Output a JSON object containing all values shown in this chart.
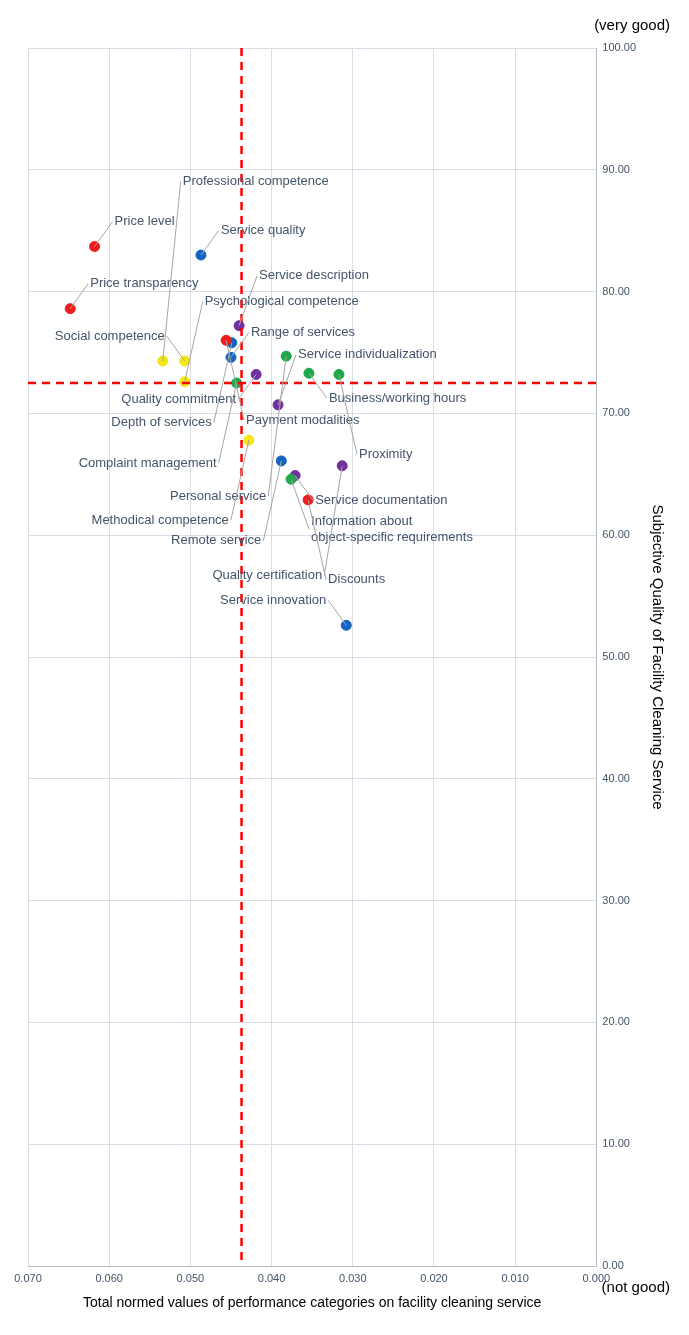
{
  "chart_data": {
    "type": "scatter",
    "xlabel": "Total normed values of performance categories on facility cleaning service",
    "ylabel": "Subjective Quality of Facility Cleaning Service",
    "x": [
      0.0648,
      0.0618,
      0.0487,
      0.0534,
      0.0507,
      0.0507,
      0.044,
      0.0449,
      0.0456,
      0.045,
      0.0443,
      0.0419,
      0.0382,
      0.0354,
      0.0317,
      0.0428,
      0.0392,
      0.0388,
      0.0371,
      0.0376,
      0.0313,
      0.0355,
      0.0308
    ],
    "values": [
      78.6,
      83.7,
      83.0,
      74.3,
      74.3,
      72.6,
      77.2,
      75.8,
      76.0,
      74.6,
      72.5,
      73.2,
      74.7,
      73.3,
      73.2,
      67.8,
      70.7,
      66.1,
      64.9,
      64.6,
      65.7,
      62.9,
      52.6
    ],
    "colors": [
      "#ee1c1c",
      "#ee1c1c",
      "#1565c0",
      "#f5e614",
      "#f5e614",
      "#f5e614",
      "#7030a0",
      "#1565c0",
      "#ee1c1c",
      "#1565c0",
      "#1fa84a",
      "#7030a0",
      "#1fa84a",
      "#1fa84a",
      "#1fa84a",
      "#f5e614",
      "#7030a0",
      "#1565c0",
      "#7030a0",
      "#1fa84a",
      "#7030a0",
      "#ee1c1c",
      "#1565c0"
    ],
    "marker": "circle",
    "ylim": [
      0,
      100
    ],
    "yticks": [
      {
        "value": 0,
        "label": "0.00"
      },
      {
        "value": 10,
        "label": "10.00"
      },
      {
        "value": 20,
        "label": "20.00"
      },
      {
        "value": 30,
        "label": "30.00"
      },
      {
        "value": 40,
        "label": "40.00"
      },
      {
        "value": 50,
        "label": "50.00"
      },
      {
        "value": 60,
        "label": "60.00"
      },
      {
        "value": 70,
        "label": "70.00"
      },
      {
        "value": 80,
        "label": "80.00"
      },
      {
        "value": 90,
        "label": "90.00"
      },
      {
        "value": 100,
        "label": "100.00"
      }
    ],
    "xlim": [
      0.07,
      0
    ],
    "xticks": [
      {
        "value": 0,
        "label": "0.000"
      },
      {
        "value": 0.01,
        "label": "0.010"
      },
      {
        "value": 0.02,
        "label": "0.020"
      },
      {
        "value": 0.03,
        "label": "0.030"
      },
      {
        "value": 0.04,
        "label": "0.040"
      },
      {
        "value": 0.05,
        "label": "0.050"
      },
      {
        "value": 0.06,
        "label": "0.060"
      },
      {
        "value": 0.07,
        "label": "0.070"
      }
    ],
    "grid": true,
    "legend": false,
    "ref_lines": [
      {
        "axis": "y",
        "value": 72.5,
        "color": "#ff0000",
        "line_style": "dashed"
      },
      {
        "axis": "x",
        "value": 0.0437,
        "color": "#ff0000",
        "line_style": "dashed"
      }
    ],
    "annotations": [
      "(not good)",
      {
        "text": "Price transparency",
        "x": 0.0648,
        "y": 78.6
      },
      {
        "text": "Price level",
        "x": 0.0618,
        "y": 83.7
      },
      {
        "text": "Service quality",
        "x": 0.0487,
        "y": 83.0
      },
      {
        "text": "Professional competence",
        "x": 0.0534,
        "y": 74.3
      },
      {
        "text": "Social competence",
        "x": 0.0507,
        "y": 74.3
      },
      {
        "text": "Psychological competence",
        "x": 0.0507,
        "y": 72.6
      },
      {
        "text": "Service description",
        "x": 0.044,
        "y": 77.2
      },
      {
        "text": "Depth of services",
        "x": 0.0449,
        "y": 75.8
      },
      {
        "text": "Payment modalities",
        "x": 0.0456,
        "y": 76.0
      },
      {
        "text": "Range of services",
        "x": 0.045,
        "y": 74.6
      },
      {
        "text": "Complaint management",
        "x": 0.0443,
        "y": 72.5
      },
      {
        "text": "Quality commitment",
        "x": 0.0419,
        "y": 73.2
      },
      {
        "text": "Personal service",
        "x": 0.0382,
        "y": 74.7
      },
      {
        "text": "Business/working hours",
        "x": 0.0354,
        "y": 73.3
      },
      {
        "text": "Proximity",
        "x": 0.0317,
        "y": 73.2
      },
      {
        "text": "Methodical competence",
        "x": 0.0428,
        "y": 67.8
      },
      {
        "text": "Service individualization",
        "x": 0.0392,
        "y": 70.7
      },
      {
        "text": "Remote service",
        "x": 0.0388,
        "y": 66.1
      },
      {
        "text": "Service documentation",
        "x": 0.0371,
        "y": 64.9
      },
      {
        "text": "Information about object-specific requirements",
        "x": 0.0376,
        "y": 64.6
      },
      {
        "text": "Quality certification",
        "x": 0.0313,
        "y": 65.7
      },
      {
        "text": "Discounts",
        "x": 0.0355,
        "y": 62.9
      },
      {
        "text": "Service innovation",
        "x": 0.0308,
        "y": 52.6
      },
      "(very good)"
    ]
  }
}
